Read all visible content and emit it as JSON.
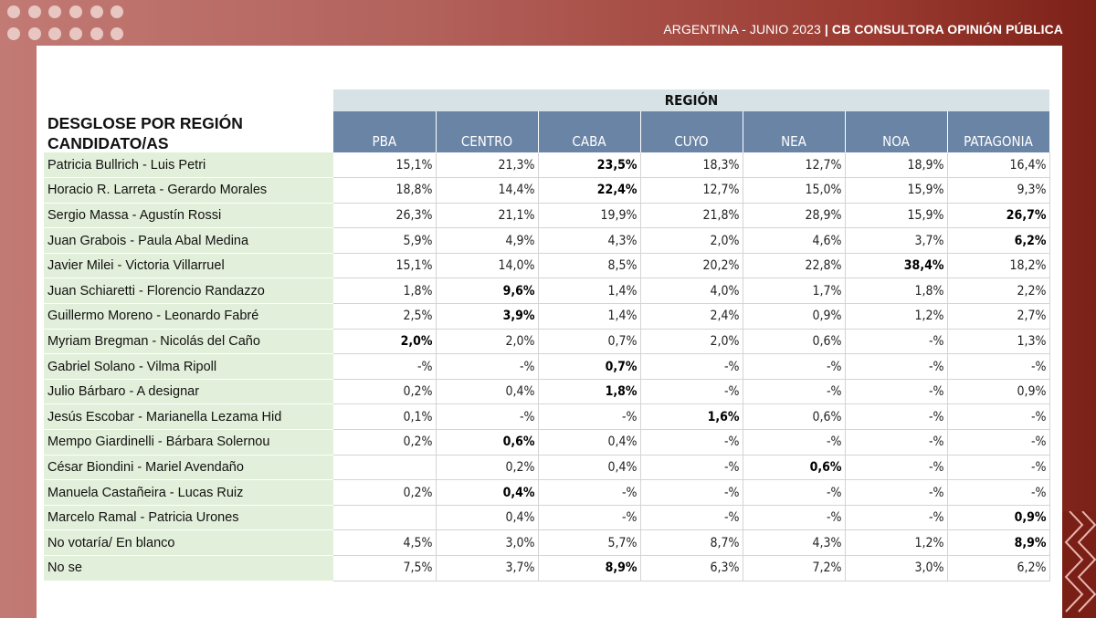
{
  "header": {
    "country": "ARGENTINA",
    "date": " - JUNIO 2023 ",
    "separator": "|",
    "brand": " CB CONSULTORA OPINIÓN PÚBLICA"
  },
  "colors": {
    "background": "#b2605a",
    "region_header": "#d7e2e7",
    "column_header": "#6a84a6",
    "label_column": "#e2efda"
  },
  "table": {
    "title_line1": "DESGLOSE POR REGIÓN",
    "title_line2": "CANDIDATO/AS",
    "group_header": "REGIÓN",
    "columns": [
      "PBA",
      "CENTRO",
      "CABA",
      "CUYO",
      "NEA",
      "NOA",
      "PATAGONIA"
    ],
    "rows": [
      {
        "label": "Patricia Bullrich - Luis Petri",
        "values": [
          "15,1%",
          "21,3%",
          "23,5%",
          "18,3%",
          "12,7%",
          "18,9%",
          "16,4%"
        ],
        "bold": [
          2
        ]
      },
      {
        "label": "Horacio R. Larreta - Gerardo Morales",
        "values": [
          "18,8%",
          "14,4%",
          "22,4%",
          "12,7%",
          "15,0%",
          "15,9%",
          "9,3%"
        ],
        "bold": [
          2
        ]
      },
      {
        "label": "Sergio Massa - Agustín Rossi",
        "values": [
          "26,3%",
          "21,1%",
          "19,9%",
          "21,8%",
          "28,9%",
          "15,9%",
          "26,7%"
        ],
        "bold": [
          6
        ]
      },
      {
        "label": "Juan Grabois - Paula Abal Medina",
        "values": [
          "5,9%",
          "4,9%",
          "4,3%",
          "2,0%",
          "4,6%",
          "3,7%",
          "6,2%"
        ],
        "bold": [
          6
        ]
      },
      {
        "label": "Javier Milei - Victoria Villarruel",
        "values": [
          "15,1%",
          "14,0%",
          "8,5%",
          "20,2%",
          "22,8%",
          "38,4%",
          "18,2%"
        ],
        "bold": [
          5
        ]
      },
      {
        "label": "Juan Schiaretti - Florencio Randazzo",
        "values": [
          "1,8%",
          "9,6%",
          "1,4%",
          "4,0%",
          "1,7%",
          "1,8%",
          "2,2%"
        ],
        "bold": [
          1
        ]
      },
      {
        "label": "Guillermo Moreno - Leonardo Fabré",
        "values": [
          "2,5%",
          "3,9%",
          "1,4%",
          "2,4%",
          "0,9%",
          "1,2%",
          "2,7%"
        ],
        "bold": [
          1
        ]
      },
      {
        "label": "Myriam Bregman - Nicolás del Caño",
        "values": [
          "2,0%",
          "2,0%",
          "0,7%",
          "2,0%",
          "0,6%",
          "-%",
          "1,3%"
        ],
        "bold": [
          0
        ]
      },
      {
        "label": "Gabriel Solano - Vilma Ripoll",
        "values": [
          "-%",
          "-%",
          "0,7%",
          "-%",
          "-%",
          "-%",
          "-%"
        ],
        "bold": [
          2
        ]
      },
      {
        "label": "Julio Bárbaro - A designar",
        "values": [
          "0,2%",
          "0,4%",
          "1,8%",
          "-%",
          "-%",
          "-%",
          "0,9%"
        ],
        "bold": [
          2
        ]
      },
      {
        "label": "Jesús Escobar - Marianella Lezama Hid",
        "values": [
          "0,1%",
          "-%",
          "-%",
          "1,6%",
          "0,6%",
          "-%",
          "-%"
        ],
        "bold": [
          3
        ]
      },
      {
        "label": "Mempo Giardinelli - Bárbara Solernou",
        "values": [
          "0,2%",
          "0,6%",
          "0,4%",
          "-%",
          "-%",
          "-%",
          "-%"
        ],
        "bold": [
          1
        ]
      },
      {
        "label": "César Biondini - Mariel Avendaño",
        "values": [
          "",
          "0,2%",
          "0,4%",
          "-%",
          "0,6%",
          "-%",
          "-%"
        ],
        "bold": [
          4
        ]
      },
      {
        "label": "Manuela Castañeira - Lucas Ruiz",
        "values": [
          "0,2%",
          "0,4%",
          "-%",
          "-%",
          "-%",
          "-%",
          "-%"
        ],
        "bold": [
          1
        ]
      },
      {
        "label": "Marcelo Ramal - Patricia Urones",
        "values": [
          "",
          "0,4%",
          "-%",
          "-%",
          "-%",
          "-%",
          "0,9%"
        ],
        "bold": [
          6
        ]
      },
      {
        "label": "No votaría/ En blanco",
        "values": [
          "4,5%",
          "3,0%",
          "5,7%",
          "8,7%",
          "4,3%",
          "1,2%",
          "8,9%"
        ],
        "bold": [
          6
        ]
      },
      {
        "label": "No se",
        "values": [
          "7,5%",
          "3,7%",
          "8,9%",
          "6,3%",
          "7,2%",
          "3,0%",
          "6,2%"
        ],
        "bold": [
          2
        ]
      }
    ]
  }
}
